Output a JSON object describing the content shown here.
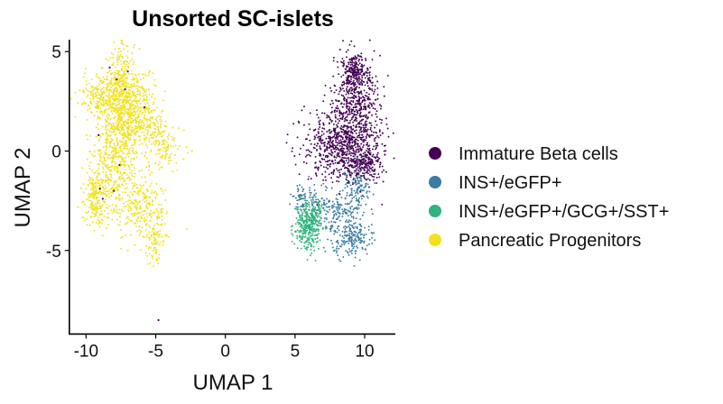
{
  "chart_data": {
    "type": "scatter",
    "title": "Unsorted SC-islets",
    "xlabel": "UMAP 1",
    "ylabel": "UMAP 2",
    "xlim": [
      -11.2,
      12.2
    ],
    "ylim": [
      -9.2,
      5.6
    ],
    "xticks": [
      -10,
      -5,
      0,
      5,
      10
    ],
    "yticks": [
      5,
      0,
      -5
    ],
    "xtick_labels": [
      "-10",
      "-5",
      "0",
      "5",
      "10"
    ],
    "ytick_labels": [
      "5",
      "0",
      "-5"
    ],
    "grid": false,
    "legend_position": "right",
    "series": [
      {
        "name": "Immature Beta cells",
        "color": "#440154",
        "clusters": [
          {
            "cx": 9.4,
            "cy": 2.5,
            "sx": 0.85,
            "sy": 1.25,
            "n": 520
          },
          {
            "cx": 8.3,
            "cy": 0.3,
            "sx": 1.45,
            "sy": 0.85,
            "n": 680
          },
          {
            "cx": 9.8,
            "cy": -0.7,
            "sx": 0.75,
            "sy": 0.35,
            "n": 150
          },
          {
            "cx": 9.3,
            "cy": 4.0,
            "sx": 0.45,
            "sy": 0.45,
            "n": 160
          }
        ],
        "points": [
          [
            -4.8,
            -8.5
          ],
          [
            -7.8,
            3.6
          ],
          [
            -8.3,
            4.2
          ],
          [
            -7.2,
            3.1
          ],
          [
            -9.0,
            -1.9
          ],
          [
            -8.8,
            -2.4
          ],
          [
            -7.6,
            -0.7
          ],
          [
            -5.8,
            2.2
          ],
          [
            -9.1,
            0.8
          ],
          [
            -7.0,
            4.0
          ],
          [
            -8.0,
            -2.0
          ]
        ]
      },
      {
        "name": "INS+/eGFP+",
        "color": "#3b7ca1",
        "clusters": [
          {
            "cx": 9.5,
            "cy": -1.9,
            "sx": 0.45,
            "sy": 0.65,
            "n": 150
          },
          {
            "cx": 9.2,
            "cy": -4.4,
            "sx": 0.65,
            "sy": 0.45,
            "n": 170
          },
          {
            "cx": 8.2,
            "cy": -3.3,
            "sx": 0.85,
            "sy": 0.55,
            "n": 130
          },
          {
            "cx": 6.6,
            "cy": -2.6,
            "sx": 0.85,
            "sy": 0.45,
            "n": 100
          },
          {
            "cx": 5.4,
            "cy": -2.3,
            "sx": 0.3,
            "sy": 0.3,
            "n": 35
          }
        ],
        "points": []
      },
      {
        "name": "INS+/eGFP+/GCG+/SST+",
        "color": "#2fb47c",
        "clusters": [
          {
            "cx": 5.9,
            "cy": -3.8,
            "sx": 0.45,
            "sy": 0.6,
            "n": 280
          },
          {
            "cx": 6.6,
            "cy": -3.3,
            "sx": 0.3,
            "sy": 0.35,
            "n": 60
          }
        ],
        "points": []
      },
      {
        "name": "Pancreatic Progenitors",
        "color": "#f2e21e",
        "clusters": [
          {
            "cx": -7.4,
            "cy": 3.6,
            "sx": 0.45,
            "sy": 0.9,
            "n": 220
          },
          {
            "cx": -8.4,
            "cy": 2.6,
            "sx": 0.95,
            "sy": 0.75,
            "n": 380
          },
          {
            "cx": -6.4,
            "cy": 2.3,
            "sx": 0.7,
            "sy": 0.85,
            "n": 260
          },
          {
            "cx": -7.2,
            "cy": 1.1,
            "sx": 0.65,
            "sy": 0.75,
            "n": 260
          },
          {
            "cx": -8.0,
            "cy": -0.5,
            "sx": 0.75,
            "sy": 0.95,
            "n": 300
          },
          {
            "cx": -9.3,
            "cy": -2.4,
            "sx": 0.45,
            "sy": 0.75,
            "n": 220
          },
          {
            "cx": -6.2,
            "cy": -2.6,
            "sx": 1.0,
            "sy": 0.85,
            "n": 260
          },
          {
            "cx": -5.1,
            "cy": -4.3,
            "sx": 0.4,
            "sy": 0.65,
            "n": 110
          },
          {
            "cx": -4.3,
            "cy": 0.2,
            "sx": 0.55,
            "sy": 0.65,
            "n": 100
          },
          {
            "cx": -5.2,
            "cy": 1.1,
            "sx": 0.5,
            "sy": 0.5,
            "n": 90
          }
        ],
        "points": [
          [
            -2.4,
            0.0
          ],
          [
            -3.0,
            -0.4
          ],
          [
            -2.8,
            0.2
          ]
        ]
      }
    ]
  }
}
